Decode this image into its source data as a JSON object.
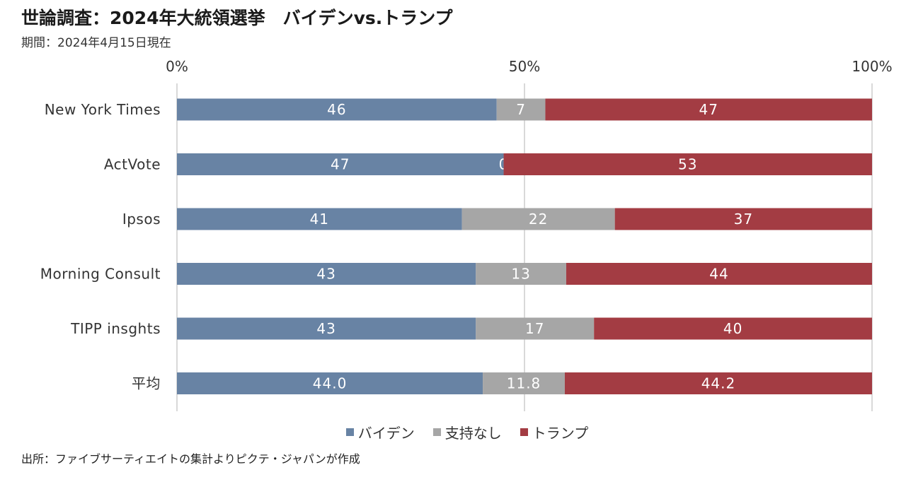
{
  "header": {
    "title": "世論調査：2024年大統領選挙　バイデンvs.トランプ",
    "subtitle": "期間：2024年4月15日現在"
  },
  "footer": {
    "source": "出所：ファイブサーティエイトの集計よりピクテ・ジャパンが作成"
  },
  "colors": {
    "biden": "#6883a4",
    "none": "#a6a6a6",
    "trump": "#a33c43",
    "grid": "#d9d9d9"
  },
  "chart_data": {
    "type": "bar",
    "orientation": "horizontal",
    "stacked": true,
    "percent": true,
    "categories": [
      "New York Times",
      "ActVote",
      "Ipsos",
      "Morning Consult",
      "TIPP insghts",
      "平均"
    ],
    "series": [
      {
        "name": "バイデン",
        "values": [
          46,
          47,
          41,
          43,
          43,
          44.0
        ],
        "labels": [
          "46",
          "47",
          "41",
          "43",
          "43",
          "44.0"
        ]
      },
      {
        "name": "支持なし",
        "values": [
          7,
          0,
          22,
          13,
          17,
          11.8
        ],
        "labels": [
          "7",
          "0",
          "22",
          "13",
          "17",
          "11.8"
        ]
      },
      {
        "name": "トランプ",
        "values": [
          47,
          53,
          37,
          44,
          40,
          44.2
        ],
        "labels": [
          "47",
          "53",
          "37",
          "44",
          "40",
          "44.2"
        ]
      }
    ],
    "xlim": [
      0,
      100
    ],
    "xticks": [
      "0%",
      "50%",
      "100%"
    ],
    "grid": true,
    "legend_position": "bottom"
  }
}
